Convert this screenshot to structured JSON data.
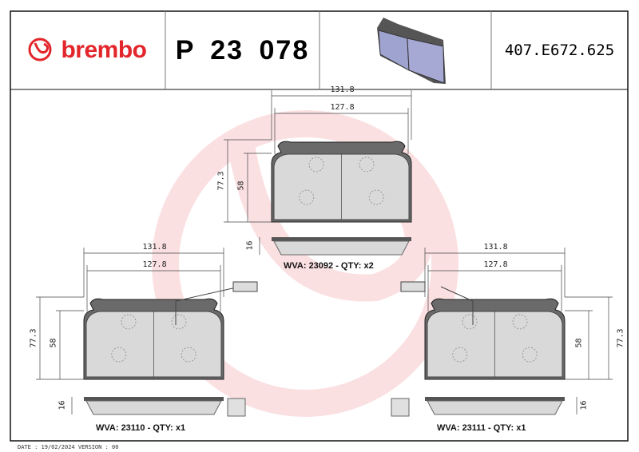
{
  "header": {
    "brand": "brembo",
    "part_number": "P 23 078",
    "reference": "407.E672.625",
    "pad_image_icon": "brake-pad-3d"
  },
  "colors": {
    "brand": "#e2262b",
    "watermark": "#fbe3e4",
    "pad_fill": "#d9d9d9",
    "backing": "#6a6a6a",
    "pad_3d": "#9fa3cf"
  },
  "pads": [
    {
      "width_outer": "131.8",
      "width_inner": "127.8",
      "height_outer": "77.3",
      "height_inner": "58",
      "thickness": "16",
      "label": "WVA: 23092 - QTY: x2"
    },
    {
      "width_outer": "131.8",
      "width_inner": "127.8",
      "height_outer": "77.3",
      "height_inner": "58",
      "thickness": "16",
      "label": "WVA: 23110 - QTY: x1"
    },
    {
      "width_outer": "131.8",
      "width_inner": "127.8",
      "height_outer": "77.3",
      "height_inner": "58",
      "thickness": "16",
      "label": "WVA: 23111 - QTY: x1"
    }
  ],
  "footer": {
    "text": "DATE : 19/02/2024 VERSION : 00"
  }
}
